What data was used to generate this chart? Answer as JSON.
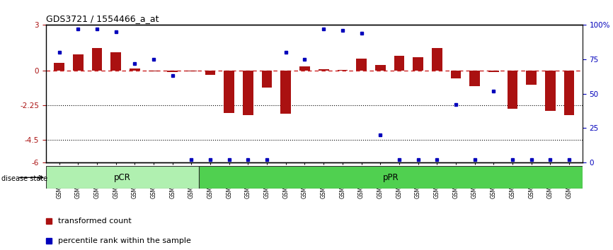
{
  "title": "GDS3721 / 1554466_a_at",
  "samples": [
    "GSM559062",
    "GSM559063",
    "GSM559064",
    "GSM559065",
    "GSM559066",
    "GSM559067",
    "GSM559068",
    "GSM559069",
    "GSM559042",
    "GSM559043",
    "GSM559044",
    "GSM559045",
    "GSM559046",
    "GSM559047",
    "GSM559048",
    "GSM559049",
    "GSM559050",
    "GSM559051",
    "GSM559052",
    "GSM559053",
    "GSM559054",
    "GSM559055",
    "GSM559056",
    "GSM559057",
    "GSM559058",
    "GSM559059",
    "GSM559060",
    "GSM559061"
  ],
  "bar_values": [
    0.5,
    1.1,
    1.5,
    1.2,
    0.15,
    -0.05,
    -0.08,
    -0.05,
    -0.25,
    -2.75,
    -2.9,
    -1.1,
    -2.8,
    0.3,
    0.1,
    0.05,
    0.8,
    0.4,
    1.0,
    0.9,
    1.5,
    -0.5,
    -1.0,
    -0.1,
    -2.5,
    -0.9,
    -2.6,
    -2.9
  ],
  "blue_values": [
    80,
    97,
    97,
    95,
    72,
    75,
    63,
    2,
    2,
    2,
    2,
    2,
    80,
    75,
    97,
    96,
    94,
    20,
    2,
    2,
    2,
    42,
    2,
    52,
    2,
    2,
    2,
    2
  ],
  "groups": [
    {
      "label": "pCR",
      "start": 0,
      "end": 8,
      "color": "#b0f0b0"
    },
    {
      "label": "pPR",
      "start": 8,
      "end": 28,
      "color": "#50d050"
    }
  ],
  "ylim_left": [
    -6,
    3
  ],
  "ylim_right": [
    0,
    100
  ],
  "yticks_left": [
    3,
    0,
    -2.25,
    -4.5,
    -6
  ],
  "yticks_left_labels": [
    "3",
    "0",
    "-2.25",
    "-4.5",
    "-6"
  ],
  "yticks_right": [
    100,
    75,
    50,
    25,
    0
  ],
  "yticks_right_labels": [
    "100%",
    "75",
    "50",
    "25",
    "0"
  ],
  "bar_color": "#AA1111",
  "dot_color": "#0000BB",
  "zero_line_color": "#CC2222"
}
